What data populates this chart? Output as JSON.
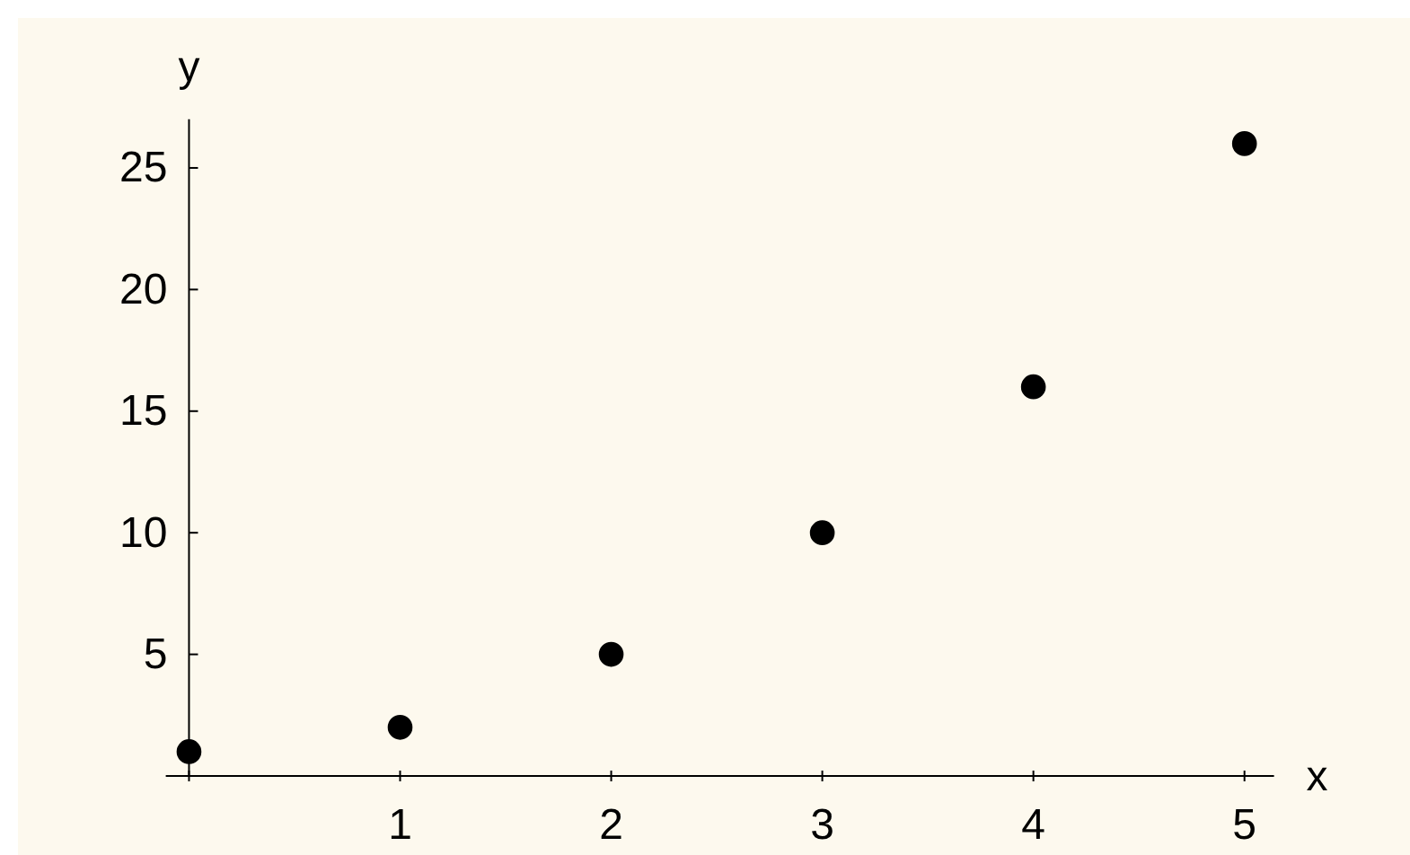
{
  "chart_data": {
    "type": "scatter",
    "xlabel": "x",
    "ylabel": "y",
    "x": [
      0,
      1,
      2,
      3,
      4,
      5
    ],
    "series": [
      {
        "color": "#000000",
        "values": [
          1,
          2,
          5,
          10,
          16,
          26
        ]
      }
    ],
    "xlim": [
      -0.11,
      5.14
    ],
    "ylim": [
      0,
      27
    ],
    "xticks": [
      {
        "value": 0,
        "label": null
      },
      1,
      2,
      3,
      4,
      5
    ],
    "yticks": [
      5,
      10,
      15,
      20,
      25
    ],
    "marker": "circle"
  }
}
